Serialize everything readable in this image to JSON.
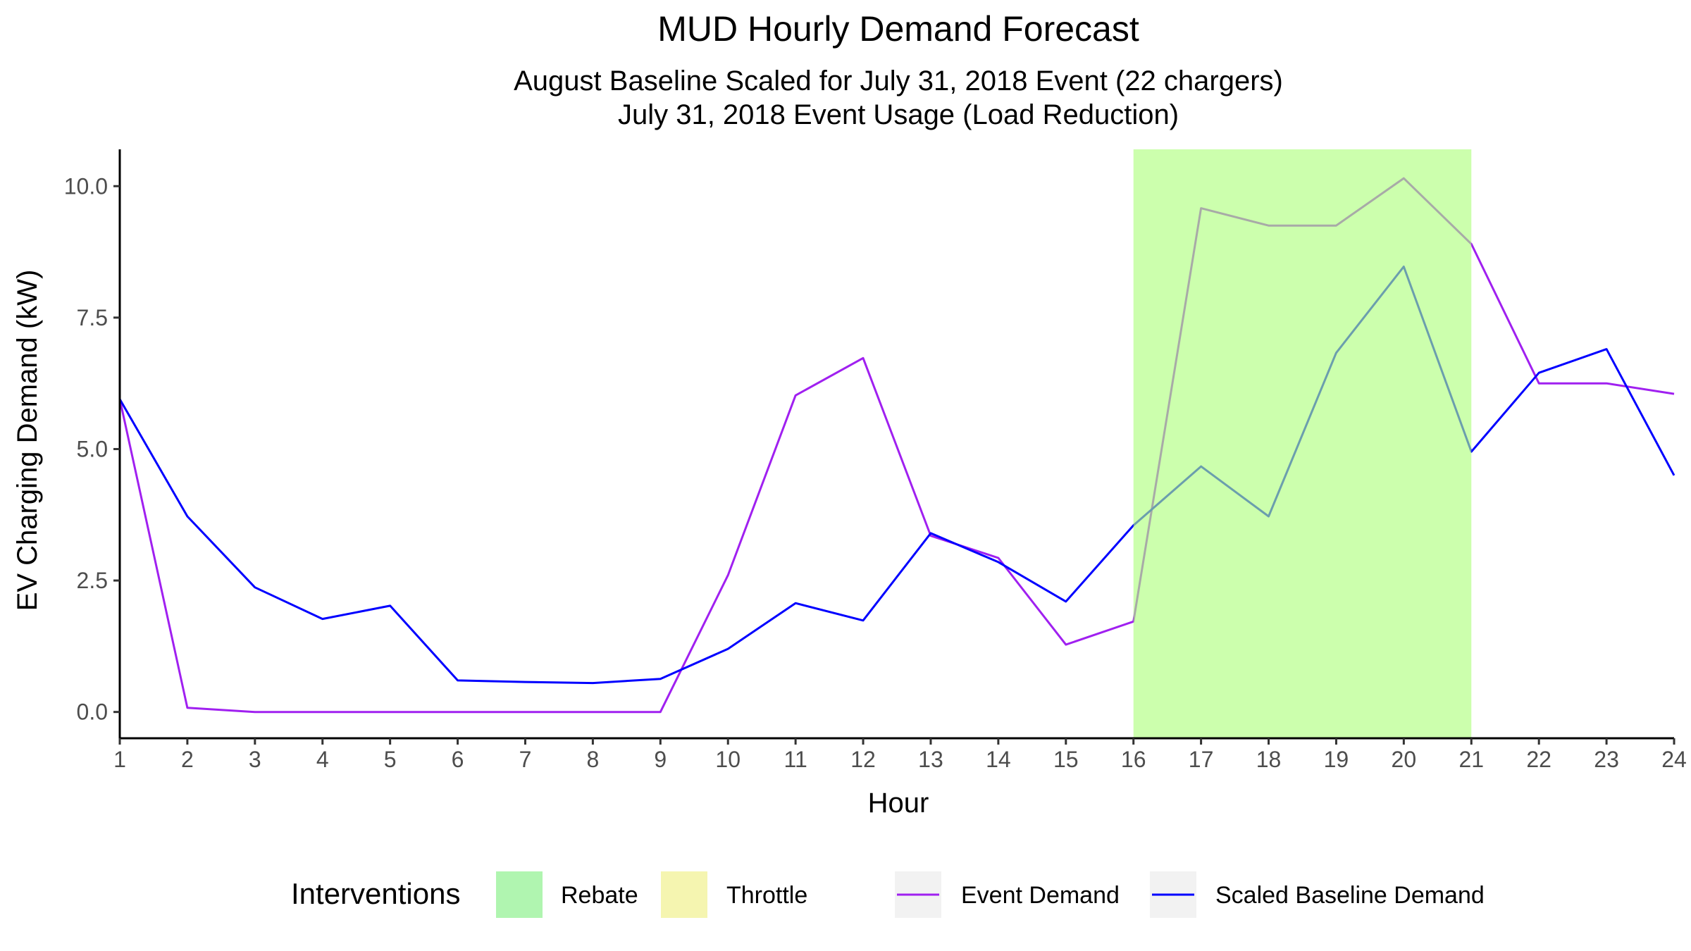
{
  "chart_data": {
    "type": "line",
    "title": "MUD Hourly Demand Forecast",
    "subtitle_lines": [
      "August Baseline Scaled for July 31, 2018 Event (22 chargers)",
      "July 31, 2018 Event Usage (Load Reduction)"
    ],
    "xlabel": "Hour",
    "ylabel": "EV Charging Demand (kW)",
    "x": [
      1,
      2,
      3,
      4,
      5,
      6,
      7,
      8,
      9,
      10,
      11,
      12,
      13,
      14,
      15,
      16,
      17,
      18,
      19,
      20,
      21,
      22,
      23,
      24
    ],
    "xlim": [
      1,
      24
    ],
    "ylim": [
      -0.5,
      10.7
    ],
    "y_ticks": [
      0,
      2.5,
      5,
      7.5,
      10
    ],
    "y_tick_labels": [
      "0.0",
      "2.5",
      "5.0",
      "7.5",
      "10.0"
    ],
    "grid": false,
    "legend_position": "bottom",
    "series": [
      {
        "name": "Event Demand",
        "color": "#a020f0",
        "values": [
          5.95,
          0.08,
          0.0,
          0.0,
          0.0,
          0.0,
          0.0,
          0.0,
          0.0,
          2.6,
          6.02,
          6.73,
          3.35,
          2.93,
          1.28,
          1.72,
          9.58,
          9.25,
          9.25,
          10.15,
          8.9,
          6.25,
          6.25,
          6.05
        ]
      },
      {
        "name": "Scaled Baseline Demand",
        "color": "#0000ff",
        "values": [
          5.95,
          3.72,
          2.37,
          1.77,
          2.02,
          0.6,
          0.57,
          0.55,
          0.63,
          1.2,
          2.07,
          1.74,
          3.4,
          2.85,
          2.1,
          3.55,
          4.67,
          3.72,
          6.83,
          8.47,
          4.95,
          6.45,
          6.9,
          4.5
        ]
      }
    ],
    "shaded_regions": [
      {
        "label": "Rebate",
        "x_start": 16,
        "x_end": 21,
        "color": "#adff7a"
      }
    ],
    "legend": {
      "title": "Interventions",
      "interventions": [
        {
          "label": "Rebate",
          "color": "#b0f5b0"
        },
        {
          "label": "Throttle",
          "color": "#f5f5b0"
        }
      ],
      "lines": [
        {
          "label": "Event Demand",
          "color": "#a020f0"
        },
        {
          "label": "Scaled Baseline Demand",
          "color": "#0000ff"
        }
      ]
    }
  }
}
